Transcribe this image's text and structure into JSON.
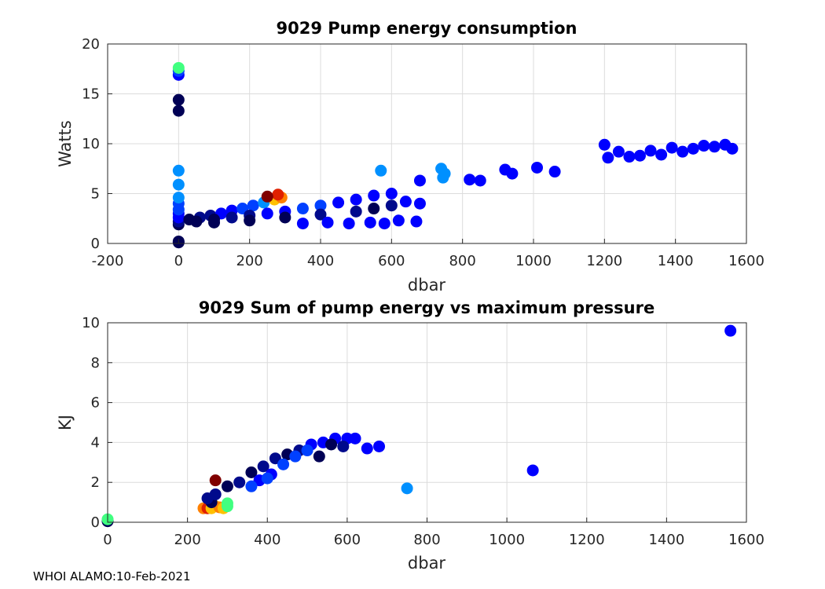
{
  "footer": "WHOI ALAMO:10-Feb-2021",
  "chart_data": [
    {
      "type": "scatter",
      "title": "9029 Pump energy consumption",
      "xlabel": "dbar",
      "ylabel": "Watts",
      "xlim": [
        -200,
        1600
      ],
      "ylim": [
        0,
        20
      ],
      "xticks": [
        -200,
        0,
        200,
        400,
        600,
        800,
        1000,
        1200,
        1400,
        1600
      ],
      "yticks": [
        0,
        5,
        10,
        15,
        20
      ],
      "grid": true,
      "colors": [
        "#000055",
        "#000a8c",
        "#0000ff",
        "#0040ff",
        "#0090ff",
        "#40ff80",
        "#ffc000",
        "#ff8000",
        "#e02000",
        "#800000"
      ],
      "points": [
        [
          0,
          0.1,
          0
        ],
        [
          0,
          0.2,
          0
        ],
        [
          0,
          1.9,
          0
        ],
        [
          0,
          2.2,
          1
        ],
        [
          0,
          2.6,
          2
        ],
        [
          0,
          3.0,
          2
        ],
        [
          0,
          3.4,
          3
        ],
        [
          0,
          4.0,
          3
        ],
        [
          0,
          4.6,
          4
        ],
        [
          0,
          5.9,
          4
        ],
        [
          0,
          7.3,
          4
        ],
        [
          0,
          13.3,
          0
        ],
        [
          0,
          14.4,
          0
        ],
        [
          0,
          16.9,
          2
        ],
        [
          0,
          17.3,
          3
        ],
        [
          0,
          17.6,
          5
        ],
        [
          30,
          2.4,
          0
        ],
        [
          60,
          2.6,
          1
        ],
        [
          90,
          2.8,
          1
        ],
        [
          120,
          3.0,
          2
        ],
        [
          150,
          3.3,
          2
        ],
        [
          180,
          3.5,
          3
        ],
        [
          210,
          3.8,
          3
        ],
        [
          240,
          4.1,
          4
        ],
        [
          270,
          4.4,
          6
        ],
        [
          290,
          4.6,
          7
        ],
        [
          280,
          4.9,
          8
        ],
        [
          250,
          4.7,
          9
        ],
        [
          50,
          2.2,
          0
        ],
        [
          100,
          2.4,
          0
        ],
        [
          150,
          2.6,
          1
        ],
        [
          200,
          2.8,
          1
        ],
        [
          250,
          3.0,
          2
        ],
        [
          300,
          3.2,
          2
        ],
        [
          350,
          3.5,
          3
        ],
        [
          400,
          3.8,
          3
        ],
        [
          450,
          4.1,
          2
        ],
        [
          500,
          4.4,
          2
        ],
        [
          550,
          4.8,
          2
        ],
        [
          600,
          5.0,
          2
        ],
        [
          100,
          2.1,
          0
        ],
        [
          200,
          2.3,
          0
        ],
        [
          300,
          2.6,
          0
        ],
        [
          400,
          2.9,
          1
        ],
        [
          500,
          3.2,
          1
        ],
        [
          550,
          3.5,
          0
        ],
        [
          600,
          3.8,
          1
        ],
        [
          640,
          4.2,
          2
        ],
        [
          680,
          4.0,
          2
        ],
        [
          670,
          2.2,
          2
        ],
        [
          620,
          2.3,
          2
        ],
        [
          350,
          2.0,
          2
        ],
        [
          420,
          2.1,
          2
        ],
        [
          480,
          2.0,
          2
        ],
        [
          540,
          2.1,
          2
        ],
        [
          580,
          2.0,
          2
        ],
        [
          570,
          7.3,
          4
        ],
        [
          740,
          7.5,
          4
        ],
        [
          750,
          7.0,
          4
        ],
        [
          745,
          6.6,
          4
        ],
        [
          680,
          6.3,
          2
        ],
        [
          820,
          6.4,
          2
        ],
        [
          850,
          6.3,
          2
        ],
        [
          920,
          7.4,
          2
        ],
        [
          940,
          7.0,
          2
        ],
        [
          1010,
          7.6,
          2
        ],
        [
          1060,
          7.2,
          2
        ],
        [
          1200,
          9.9,
          2
        ],
        [
          1210,
          8.6,
          2
        ],
        [
          1240,
          9.2,
          2
        ],
        [
          1270,
          8.7,
          2
        ],
        [
          1300,
          8.8,
          2
        ],
        [
          1330,
          9.3,
          2
        ],
        [
          1360,
          8.9,
          2
        ],
        [
          1390,
          9.6,
          2
        ],
        [
          1420,
          9.2,
          2
        ],
        [
          1450,
          9.5,
          2
        ],
        [
          1480,
          9.8,
          2
        ],
        [
          1510,
          9.7,
          2
        ],
        [
          1540,
          9.9,
          2
        ],
        [
          1560,
          9.5,
          2
        ]
      ]
    },
    {
      "type": "scatter",
      "title": "9029 Sum of pump energy vs maximum pressure",
      "xlabel": "dbar",
      "ylabel": "KJ",
      "xlim": [
        0,
        1600
      ],
      "ylim": [
        0,
        10
      ],
      "xticks": [
        0,
        200,
        400,
        600,
        800,
        1000,
        1200,
        1400,
        1600
      ],
      "yticks": [
        0,
        2,
        4,
        6,
        8,
        10
      ],
      "grid": true,
      "colors": [
        "#000055",
        "#000a8c",
        "#0000ff",
        "#0040ff",
        "#0090ff",
        "#40ff80",
        "#ffc000",
        "#ff8000",
        "#e02000",
        "#800000"
      ],
      "points": [
        [
          0,
          0.05,
          0
        ],
        [
          0,
          0.1,
          0
        ],
        [
          0,
          0.15,
          5
        ],
        [
          240,
          0.7,
          7
        ],
        [
          250,
          0.7,
          8
        ],
        [
          260,
          0.7,
          6
        ],
        [
          270,
          0.8,
          6
        ],
        [
          280,
          0.75,
          7
        ],
        [
          290,
          0.7,
          6
        ],
        [
          300,
          0.8,
          5
        ],
        [
          300,
          0.95,
          5
        ],
        [
          270,
          2.1,
          9
        ],
        [
          260,
          1.0,
          0
        ],
        [
          250,
          1.2,
          1
        ],
        [
          270,
          1.4,
          1
        ],
        [
          300,
          1.8,
          0
        ],
        [
          330,
          2.0,
          1
        ],
        [
          360,
          2.5,
          0
        ],
        [
          390,
          2.8,
          1
        ],
        [
          420,
          3.2,
          1
        ],
        [
          450,
          3.4,
          0
        ],
        [
          480,
          3.6,
          1
        ],
        [
          510,
          3.9,
          2
        ],
        [
          540,
          4.0,
          2
        ],
        [
          570,
          4.2,
          2
        ],
        [
          600,
          4.2,
          2
        ],
        [
          620,
          4.2,
          2
        ],
        [
          380,
          2.1,
          2
        ],
        [
          410,
          2.4,
          2
        ],
        [
          440,
          2.9,
          3
        ],
        [
          470,
          3.3,
          3
        ],
        [
          500,
          3.6,
          3
        ],
        [
          530,
          3.3,
          0
        ],
        [
          560,
          3.9,
          0
        ],
        [
          590,
          3.8,
          1
        ],
        [
          360,
          1.8,
          3
        ],
        [
          400,
          2.2,
          3
        ],
        [
          650,
          3.7,
          2
        ],
        [
          680,
          3.8,
          2
        ],
        [
          750,
          1.7,
          4
        ],
        [
          1065,
          2.6,
          2
        ],
        [
          1560,
          9.6,
          2
        ]
      ]
    }
  ]
}
